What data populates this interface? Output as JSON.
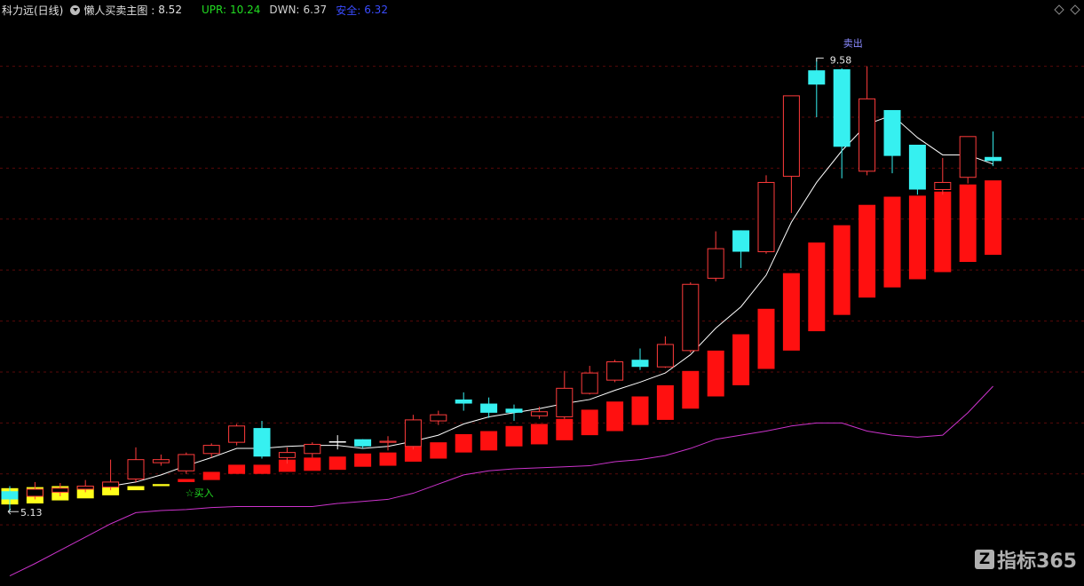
{
  "chart_data": {
    "type": "candlestick",
    "title": "科力远(日线)",
    "indicator": {
      "label": "懒人买卖主图 :",
      "value": 8.52
    },
    "stats": [
      {
        "label": "UPR:",
        "value": 10.24,
        "color": "#22dd22"
      },
      {
        "label": "DWN:",
        "value": 6.37,
        "color": "#d0d0d0"
      },
      {
        "label": "安全:",
        "value": 6.32,
        "color": "#3a4cff"
      }
    ],
    "open": [
      5.33,
      5.28,
      5.32,
      5.35,
      5.37,
      5.45,
      5.61,
      5.53,
      5.7,
      5.81,
      5.95,
      5.66,
      5.7,
      5.82,
      5.84,
      5.81,
      5.77,
      6.02,
      6.23,
      6.19,
      6.14,
      6.07,
      6.06,
      6.29,
      6.42,
      6.62,
      6.55,
      6.71,
      7.42,
      7.89,
      7.68,
      8.42,
      9.46,
      9.47,
      8.47,
      9.07,
      8.73,
      8.29,
      8.41,
      8.61
    ],
    "high": [
      5.38,
      5.42,
      5.41,
      5.44,
      5.64,
      5.76,
      5.69,
      5.71,
      5.8,
      5.99,
      6.02,
      5.76,
      5.81,
      5.88,
      5.84,
      5.87,
      6.08,
      6.12,
      6.3,
      6.25,
      6.18,
      6.16,
      6.51,
      6.56,
      6.62,
      6.73,
      6.85,
      7.38,
      7.88,
      7.89,
      8.43,
      9.21,
      9.58,
      9.48,
      9.5,
      9.07,
      8.73,
      8.6,
      8.81,
      8.86
    ],
    "low": [
      5.13,
      5.25,
      5.28,
      5.32,
      5.34,
      5.42,
      5.58,
      5.5,
      5.66,
      5.78,
      5.65,
      5.6,
      5.66,
      5.74,
      5.75,
      5.73,
      5.74,
      5.98,
      6.12,
      6.05,
      6.02,
      6.04,
      6.04,
      6.28,
      6.4,
      6.52,
      6.54,
      6.69,
      7.39,
      7.52,
      7.66,
      8.06,
      9.0,
      8.4,
      8.43,
      8.45,
      8.24,
      8.24,
      8.35,
      8.52
    ],
    "close": [
      5.25,
      5.35,
      5.36,
      5.38,
      5.42,
      5.64,
      5.64,
      5.69,
      5.78,
      5.97,
      5.67,
      5.71,
      5.79,
      5.82,
      5.77,
      5.82,
      6.03,
      6.08,
      6.19,
      6.1,
      6.1,
      6.11,
      6.34,
      6.49,
      6.6,
      6.55,
      6.77,
      7.36,
      7.71,
      7.68,
      8.36,
      9.21,
      9.32,
      8.71,
      9.18,
      8.62,
      8.29,
      8.36,
      8.81,
      8.57
    ],
    "up_color": "#ff3b3b",
    "down_color": "#36f0f0",
    "doji_color": "#ffffff",
    "bars": {
      "top": [
        5.36,
        5.37,
        5.38,
        5.38,
        5.39,
        5.34,
        5.4,
        5.45,
        5.52,
        5.59,
        5.59,
        5.64,
        5.66,
        5.67,
        5.7,
        5.71,
        5.77,
        5.81,
        5.89,
        5.92,
        5.97,
        5.99,
        6.04,
        6.13,
        6.21,
        6.26,
        6.37,
        6.51,
        6.71,
        6.87,
        7.12,
        7.47,
        7.77,
        7.94,
        8.14,
        8.22,
        8.23,
        8.27,
        8.34,
        8.38
      ],
      "bottom": [
        5.2,
        5.21,
        5.24,
        5.26,
        5.29,
        5.38,
        5.38,
        5.42,
        5.44,
        5.5,
        5.5,
        5.52,
        5.53,
        5.54,
        5.57,
        5.58,
        5.62,
        5.65,
        5.71,
        5.73,
        5.77,
        5.79,
        5.83,
        5.88,
        5.92,
        5.98,
        6.03,
        6.14,
        6.26,
        6.37,
        6.53,
        6.71,
        6.9,
        7.06,
        7.23,
        7.33,
        7.41,
        7.48,
        7.58,
        7.65
      ],
      "colors": [
        "#ffff1a",
        "#ffff1a",
        "#ffff1a",
        "#ffff1a",
        "#ffff1a",
        "#ffff1a",
        "#ffff1a",
        "#ff1010",
        "#ff1010",
        "#ff1010",
        "#ff1010",
        "#ff1010",
        "#ff1010",
        "#ff1010",
        "#ff1010",
        "#ff1010",
        "#ff1010",
        "#ff1010",
        "#ff1010",
        "#ff1010",
        "#ff1010",
        "#ff1010",
        "#ff1010",
        "#ff1010",
        "#ff1010",
        "#ff1010",
        "#ff1010",
        "#ff1010",
        "#ff1010",
        "#ff1010",
        "#ff1010",
        "#ff1010",
        "#ff1010",
        "#ff1010",
        "#ff1010",
        "#ff1010",
        "#ff1010",
        "#ff1010",
        "#ff1010",
        "#ff1010"
      ]
    },
    "lines": [
      {
        "color": "#ffffff",
        "values": [
          null,
          null,
          null,
          null,
          5.38,
          5.42,
          5.49,
          5.58,
          5.66,
          5.75,
          5.75,
          5.77,
          5.78,
          5.78,
          5.75,
          5.77,
          5.82,
          5.88,
          5.99,
          6.06,
          6.1,
          6.14,
          6.19,
          6.23,
          6.32,
          6.4,
          6.49,
          6.67,
          6.93,
          7.14,
          7.45,
          7.97,
          8.36,
          8.67,
          8.93,
          9.02,
          8.8,
          8.63,
          8.63,
          8.54
        ]
      },
      {
        "color": "#cc33cc",
        "values": [
          4.5,
          4.62,
          4.75,
          4.88,
          5.01,
          5.12,
          5.14,
          5.15,
          5.17,
          5.18,
          5.18,
          5.18,
          5.18,
          5.21,
          5.23,
          5.25,
          5.31,
          5.4,
          5.49,
          5.53,
          5.55,
          5.56,
          5.57,
          5.58,
          5.62,
          5.64,
          5.68,
          5.75,
          5.84,
          5.88,
          5.92,
          5.97,
          6.0,
          6.0,
          5.92,
          5.88,
          5.86,
          5.88,
          6.1,
          6.36
        ]
      }
    ],
    "annotations": {
      "sell": "卖出",
      "buy": "☆买入",
      "high": 9.58,
      "low": 5.13
    },
    "ylim": [
      4.4,
      10.15
    ],
    "yticks": [
      5,
      5.5,
      6,
      6.5,
      7,
      7.5,
      8,
      8.5,
      9,
      9.5
    ],
    "grid": true
  },
  "watermark": "指标365"
}
